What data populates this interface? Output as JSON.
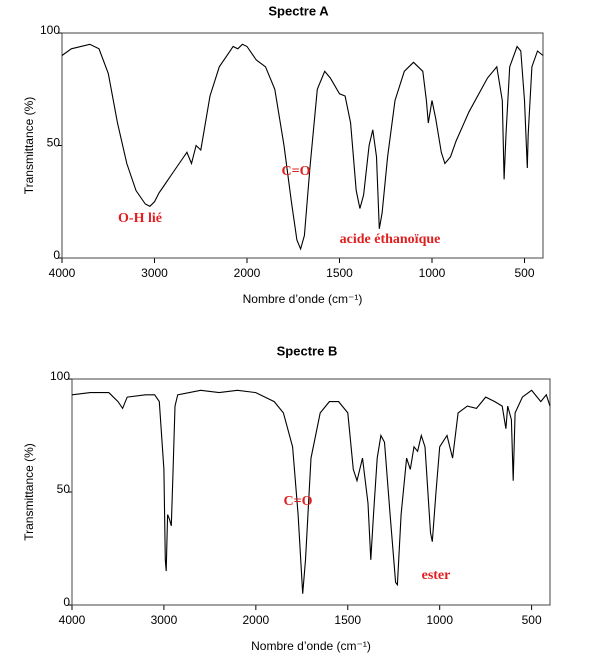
{
  "chart_data": [
    {
      "type": "line",
      "title": "Spectre A",
      "xlabel": "Nombre d’onde (cm⁻¹)",
      "ylabel": "Transmittance (%)",
      "xlim": [
        4000,
        400
      ],
      "x_scale_break": 2000,
      "xticks": [
        4000,
        3000,
        2000,
        1500,
        1000,
        500
      ],
      "ylim": [
        0,
        100
      ],
      "yticks": [
        0,
        50,
        100
      ],
      "color": "#000000",
      "annotations": [
        "O-H lié",
        "C=O",
        "acide éthanoïque"
      ],
      "x": [
        4000,
        3900,
        3700,
        3600,
        3500,
        3400,
        3300,
        3200,
        3100,
        3050,
        3000,
        2950,
        2900,
        2800,
        2700,
        2650,
        2600,
        2550,
        2500,
        2400,
        2300,
        2200,
        2150,
        2100,
        2050,
        2000,
        1950,
        1900,
        1850,
        1800,
        1760,
        1730,
        1710,
        1690,
        1660,
        1620,
        1580,
        1550,
        1500,
        1470,
        1440,
        1410,
        1390,
        1370,
        1340,
        1320,
        1300,
        1285,
        1270,
        1240,
        1200,
        1150,
        1100,
        1050,
        1030,
        1020,
        1000,
        980,
        950,
        930,
        900,
        870,
        800,
        700,
        650,
        620,
        610,
        600,
        580,
        540,
        520,
        500,
        485,
        480,
        460,
        430,
        400
      ],
      "values": [
        90,
        93,
        95,
        93,
        82,
        60,
        42,
        30,
        24,
        23,
        25,
        29,
        32,
        38,
        44,
        47,
        42,
        50,
        48,
        72,
        85,
        91,
        94,
        93,
        95,
        94,
        88,
        85,
        75,
        50,
        25,
        8,
        4,
        10,
        40,
        75,
        83,
        80,
        73,
        72,
        60,
        30,
        22,
        28,
        50,
        57,
        45,
        13,
        20,
        45,
        70,
        83,
        87,
        83,
        70,
        60,
        70,
        62,
        47,
        42,
        45,
        52,
        65,
        80,
        85,
        70,
        35,
        55,
        85,
        94,
        92,
        70,
        40,
        55,
        85,
        92,
        90
      ]
    },
    {
      "type": "line",
      "title": "Spectre B",
      "xlabel": "Nombre d’onde (cm⁻¹)",
      "ylabel": "Transmittance (%)",
      "xlim": [
        4000,
        400
      ],
      "x_scale_break": 2000,
      "xticks": [
        4000,
        3000,
        2000,
        1500,
        1000,
        500
      ],
      "ylim": [
        0,
        100
      ],
      "yticks": [
        0,
        50,
        100
      ],
      "color": "#000000",
      "annotations": [
        "C=O",
        "ester"
      ],
      "x": [
        4000,
        3800,
        3600,
        3500,
        3450,
        3400,
        3200,
        3100,
        3050,
        3000,
        2985,
        2975,
        2960,
        2940,
        2920,
        2900,
        2880,
        2850,
        2600,
        2400,
        2200,
        2000,
        1900,
        1850,
        1800,
        1770,
        1745,
        1730,
        1700,
        1650,
        1600,
        1550,
        1500,
        1470,
        1450,
        1420,
        1390,
        1375,
        1360,
        1340,
        1320,
        1300,
        1270,
        1240,
        1230,
        1210,
        1180,
        1160,
        1140,
        1120,
        1100,
        1080,
        1050,
        1040,
        1020,
        1000,
        960,
        930,
        900,
        850,
        800,
        750,
        700,
        660,
        640,
        630,
        610,
        600,
        590,
        550,
        500,
        450,
        420,
        400
      ],
      "values": [
        93,
        94,
        94,
        90,
        87,
        92,
        93,
        93,
        90,
        60,
        20,
        15,
        40,
        38,
        35,
        60,
        88,
        93,
        95,
        94,
        95,
        94,
        90,
        85,
        70,
        40,
        5,
        20,
        65,
        85,
        90,
        90,
        85,
        60,
        55,
        65,
        45,
        20,
        40,
        65,
        75,
        72,
        40,
        10,
        9,
        40,
        65,
        60,
        70,
        68,
        75,
        70,
        32,
        28,
        50,
        70,
        75,
        65,
        85,
        88,
        87,
        92,
        90,
        88,
        78,
        88,
        82,
        55,
        85,
        92,
        95,
        90,
        93,
        88
      ]
    }
  ]
}
